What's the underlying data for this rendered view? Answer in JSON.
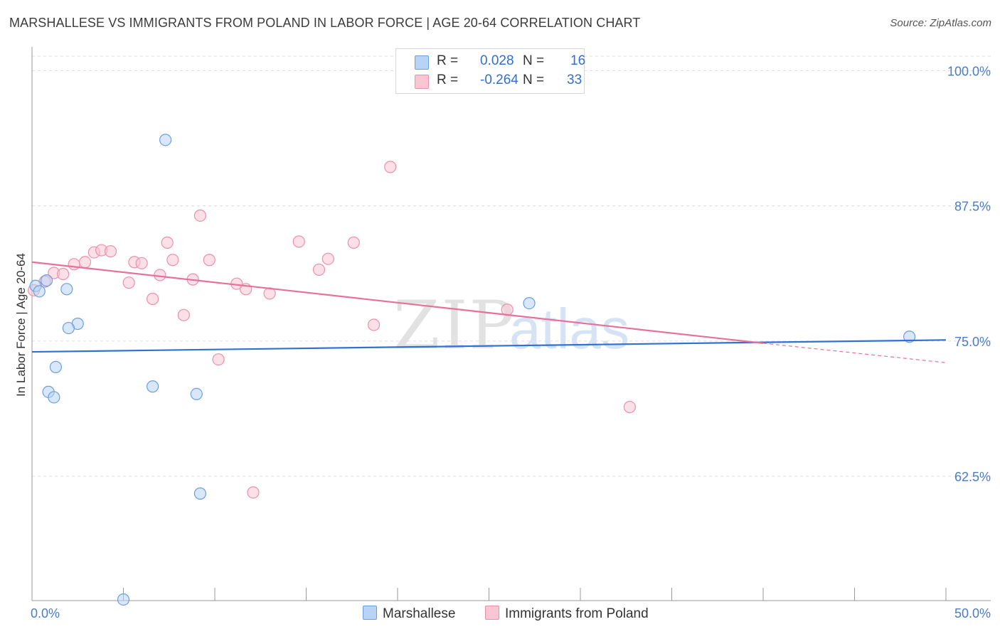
{
  "title": "MARSHALLESE VS IMMIGRANTS FROM POLAND IN LABOR FORCE | AGE 20-64 CORRELATION CHART",
  "source_label": "Source:",
  "source_value": "ZipAtlas.com",
  "legend": {
    "r_label": "R =",
    "n_label": "N =",
    "series1": {
      "r": "0.028",
      "n": "16"
    },
    "series2": {
      "r": "-0.264",
      "n": "33"
    }
  },
  "bottom_legend": {
    "series1": "Marshallese",
    "series2": "Immigrants from Poland"
  },
  "watermark": {
    "zip": "ZIP",
    "atlas": "atlas"
  },
  "colors": {
    "series1_fill": "#b9d3f5",
    "series1_stroke": "#6a9fe0",
    "series1_line": "#2f72d4",
    "series2_fill": "#f9c6d4",
    "series2_stroke": "#ec8fab",
    "series2_line": "#e8709a",
    "axis_text": "#4a7cc9",
    "grid": "#dddddd"
  },
  "chart_data": {
    "type": "scatter",
    "title": "MARSHALLESE VS IMMIGRANTS FROM POLAND IN LABOR FORCE | AGE 20-64 CORRELATION CHART",
    "xlabel": "",
    "ylabel": "In Labor Force | Age 20-64",
    "xlim": [
      0,
      50
    ],
    "ylim": [
      51.0,
      102.2
    ],
    "x_tick_labels": [
      "0.0%",
      "50.0%"
    ],
    "y_ticks": [
      100.0,
      87.5,
      75.0,
      62.5
    ],
    "y_tick_labels": [
      "100.0%",
      "87.5%",
      "75.0%",
      "62.5%"
    ],
    "grid": true,
    "series": [
      {
        "name": "Marshallese",
        "r": 0.028,
        "n": 16,
        "trend": {
          "x": [
            0,
            50
          ],
          "y": [
            74.0,
            75.1
          ]
        },
        "points": [
          {
            "x": 0.2,
            "y": 80.1
          },
          {
            "x": 0.4,
            "y": 79.6
          },
          {
            "x": 0.8,
            "y": 80.6
          },
          {
            "x": 1.9,
            "y": 79.8
          },
          {
            "x": 7.3,
            "y": 93.6
          },
          {
            "x": 2.5,
            "y": 76.6
          },
          {
            "x": 2.0,
            "y": 76.2
          },
          {
            "x": 1.3,
            "y": 72.6
          },
          {
            "x": 0.9,
            "y": 70.3
          },
          {
            "x": 1.2,
            "y": 69.8
          },
          {
            "x": 6.6,
            "y": 70.8
          },
          {
            "x": 9.0,
            "y": 70.1
          },
          {
            "x": 27.2,
            "y": 78.5
          },
          {
            "x": 48.0,
            "y": 75.4
          },
          {
            "x": 9.2,
            "y": 60.9
          },
          {
            "x": 5.0,
            "y": 51.1
          }
        ]
      },
      {
        "name": "Immigrants from Poland",
        "r": -0.264,
        "n": 33,
        "trend": {
          "x": [
            0,
            40
          ],
          "y": [
            82.3,
            74.8
          ]
        },
        "trend_dashed": {
          "x": [
            40,
            50
          ],
          "y": [
            74.8,
            73.0
          ]
        },
        "points": [
          {
            "x": 0.1,
            "y": 79.7
          },
          {
            "x": 0.7,
            "y": 80.5
          },
          {
            "x": 1.2,
            "y": 81.3
          },
          {
            "x": 1.7,
            "y": 81.2
          },
          {
            "x": 2.3,
            "y": 82.1
          },
          {
            "x": 2.9,
            "y": 82.3
          },
          {
            "x": 3.4,
            "y": 83.2
          },
          {
            "x": 3.8,
            "y": 83.4
          },
          {
            "x": 4.3,
            "y": 83.3
          },
          {
            "x": 5.3,
            "y": 80.4
          },
          {
            "x": 5.6,
            "y": 82.3
          },
          {
            "x": 6.0,
            "y": 82.2
          },
          {
            "x": 6.6,
            "y": 78.9
          },
          {
            "x": 7.0,
            "y": 81.1
          },
          {
            "x": 7.4,
            "y": 84.1
          },
          {
            "x": 7.7,
            "y": 82.5
          },
          {
            "x": 8.3,
            "y": 77.4
          },
          {
            "x": 8.8,
            "y": 80.7
          },
          {
            "x": 9.2,
            "y": 86.6
          },
          {
            "x": 9.7,
            "y": 82.5
          },
          {
            "x": 10.2,
            "y": 73.3
          },
          {
            "x": 11.2,
            "y": 80.3
          },
          {
            "x": 11.7,
            "y": 79.8
          },
          {
            "x": 12.1,
            "y": 61.0
          },
          {
            "x": 13.0,
            "y": 79.4
          },
          {
            "x": 14.6,
            "y": 84.2
          },
          {
            "x": 15.7,
            "y": 81.6
          },
          {
            "x": 16.2,
            "y": 82.6
          },
          {
            "x": 17.6,
            "y": 84.1
          },
          {
            "x": 18.7,
            "y": 76.5
          },
          {
            "x": 19.6,
            "y": 91.1
          },
          {
            "x": 26.0,
            "y": 77.9
          },
          {
            "x": 32.7,
            "y": 68.9
          }
        ]
      }
    ]
  }
}
